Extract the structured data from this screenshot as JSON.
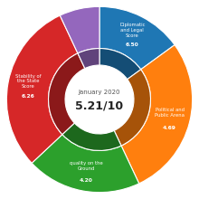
{
  "chart_data": {
    "type": "pie",
    "title": "January 2020",
    "subtitle": "5.21/10",
    "categories": [
      "Diplomatic\nand Legal\nScore",
      "Political and\nPublic Arena",
      "quality on the\nGround",
      "Stability of\nthe State\nScore",
      null
    ],
    "values": [
      15,
      28,
      20,
      30,
      7
    ],
    "scores": [
      "6.50",
      "4.69",
      "4.20",
      "6.26",
      null
    ]
  }
}
